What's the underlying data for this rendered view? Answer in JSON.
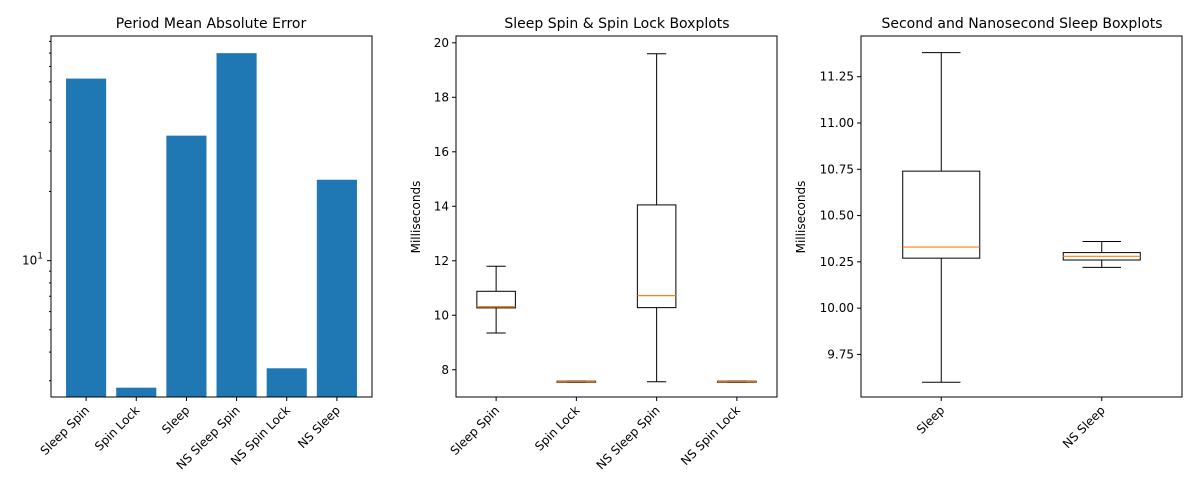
{
  "chart_data": [
    {
      "type": "bar",
      "title": "Period Mean Absolute Error",
      "xlabel": "",
      "ylabel": "",
      "yscale": "log",
      "ylim": [
        2.55,
        95
      ],
      "ytick_labels": [
        {
          "value": 10,
          "base": "10",
          "exp": "1"
        }
      ],
      "categories": [
        "Sleep Spin",
        "Spin Lock",
        "Sleep",
        "NS Sleep Spin",
        "NS Spin Lock",
        "NS Sleep"
      ],
      "values": [
        62,
        2.8,
        35,
        80,
        3.4,
        22.5
      ],
      "bar_color": "#1f77b4",
      "grid": false
    },
    {
      "type": "boxplot",
      "title": "Sleep Spin & Spin Lock Boxplots",
      "xlabel": "",
      "ylabel": "Milliseconds",
      "ylim": [
        7.0,
        20.25
      ],
      "yticks": [
        8,
        10,
        12,
        14,
        16,
        18,
        20
      ],
      "categories": [
        "Sleep Spin",
        "Spin Lock",
        "NS Sleep Spin",
        "NS Spin Lock"
      ],
      "boxes": [
        {
          "whisker_low": 9.35,
          "q1": 10.27,
          "median": 10.32,
          "q3": 10.88,
          "whisker_high": 11.8
        },
        {
          "whisker_low": 7.54,
          "q1": 7.54,
          "median": 7.56,
          "q3": 7.58,
          "whisker_high": 7.58
        },
        {
          "whisker_low": 7.56,
          "q1": 10.28,
          "median": 10.72,
          "q3": 14.05,
          "whisker_high": 19.6
        },
        {
          "whisker_low": 7.54,
          "q1": 7.54,
          "median": 7.56,
          "q3": 7.58,
          "whisker_high": 7.58
        }
      ],
      "median_color": "#ff7f0e",
      "grid": false
    },
    {
      "type": "boxplot",
      "title": "Second and Nanosecond Sleep Boxplots",
      "xlabel": "",
      "ylabel": "Milliseconds",
      "ylim": [
        9.52,
        11.47
      ],
      "yticks": [
        9.75,
        10.0,
        10.25,
        10.5,
        10.75,
        11.0,
        11.25
      ],
      "ytick_labels": [
        "9.75",
        "10.00",
        "10.25",
        "10.50",
        "10.75",
        "11.00",
        "11.25"
      ],
      "categories": [
        "Sleep",
        "NS Sleep"
      ],
      "boxes": [
        {
          "whisker_low": 9.6,
          "q1": 10.27,
          "median": 10.33,
          "q3": 10.74,
          "whisker_high": 11.38
        },
        {
          "whisker_low": 10.22,
          "q1": 10.26,
          "median": 10.28,
          "q3": 10.3,
          "whisker_high": 10.36
        }
      ],
      "median_color": "#ff7f0e",
      "grid": false
    }
  ]
}
